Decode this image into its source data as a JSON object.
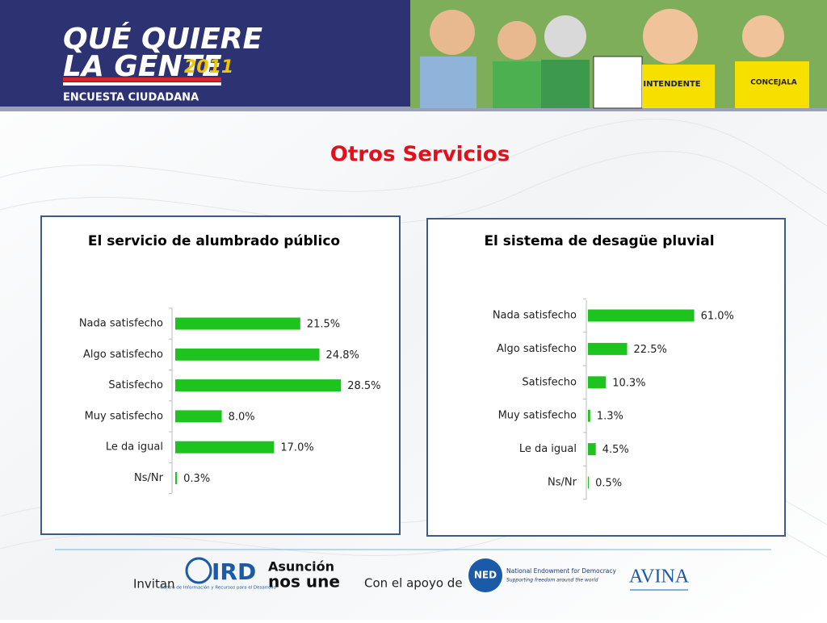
{
  "header": {
    "logo_line1": "QUÉ QUIERE",
    "logo_line2": "LA GENTE",
    "logo_year": "2011",
    "logo_subtitle": "ENCUESTA CIUDADANA",
    "cartoon_signs": [
      "INTENDENTE",
      "CONCEJALA"
    ]
  },
  "title": "Otros Servicios",
  "chart_data": [
    {
      "type": "bar",
      "orientation": "horizontal",
      "title": "El servicio de alumbrado público",
      "categories": [
        "Nada satisfecho",
        "Algo satisfecho",
        "Satisfecho",
        "Muy satisfecho",
        "Le da igual",
        "Ns/Nr"
      ],
      "values": [
        21.5,
        24.8,
        28.5,
        8.0,
        17.0,
        0.3
      ],
      "value_labels": [
        "21.5%",
        "24.8%",
        "28.5%",
        "8.0%",
        "17.0%",
        "0.3%"
      ],
      "color": "#1ec41e",
      "xlim": [
        0,
        30
      ]
    },
    {
      "type": "bar",
      "orientation": "horizontal",
      "title": "El sistema de desagüe pluvial",
      "categories": [
        "Nada satisfecho",
        "Algo satisfecho",
        "Satisfecho",
        "Muy satisfecho",
        "Le da igual",
        "Ns/Nr"
      ],
      "values": [
        61.0,
        22.5,
        10.3,
        1.3,
        4.5,
        0.5
      ],
      "value_labels": [
        "61.0%",
        "22.5%",
        "10.3%",
        "1.3%",
        "4.5%",
        "0.5%"
      ],
      "color": "#1ec41e",
      "xlim": [
        0,
        70
      ]
    }
  ],
  "footer": {
    "invite": "Invitan",
    "ird": "IRD",
    "ird_caption": "Centro de Información y Recursos para el Desarrollo",
    "asuncion_1": "Asunción",
    "asuncion_2": "nos une",
    "support": "Con el apoyo de",
    "ned": "NED",
    "ned_name": "National Endowment for Democracy",
    "ned_tagline": "Supporting freedom around the world",
    "avina": "AVINA"
  }
}
